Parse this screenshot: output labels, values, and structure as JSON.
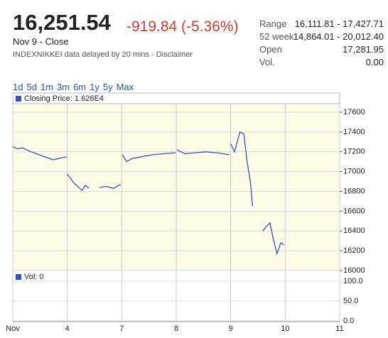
{
  "header": {
    "price": "16,251.54",
    "change": "-919.84 (-5.36%)",
    "date": "Nov 9 - Close",
    "note": "INDEXNIKKEI data delayed by 20 mins - Disclaimer"
  },
  "stats": [
    {
      "label": "Range",
      "value": "16,111.81 - 17,427.71"
    },
    {
      "label": "52 week",
      "value": "14,864.01 - 20,012.40"
    },
    {
      "label": "Open",
      "value": "17,281.95"
    },
    {
      "label": "Vol.",
      "value": "0.00"
    }
  ],
  "ranges": [
    "1d",
    "5d",
    "1m",
    "3m",
    "6m",
    "1y",
    "5y",
    "Max"
  ],
  "chart_data": {
    "type": "line",
    "legend": "Closing Price: 1.626E4",
    "color": "#3355bb",
    "grid": true,
    "x": [
      0,
      0.09,
      0.18,
      0.29,
      0.39,
      0.55,
      0.74,
      0.99,
      null,
      1.0,
      1.13,
      1.27,
      1.33,
      1.4,
      null,
      1.59,
      1.72,
      1.85,
      1.98,
      null,
      2.01,
      2.09,
      2.18,
      2.37,
      2.57,
      2.77,
      2.99,
      null,
      3.01,
      3.16,
      3.35,
      3.55,
      3.74,
      3.97,
      null,
      4.0,
      4.07,
      4.17,
      4.24,
      4.3,
      4.36,
      4.4,
      null,
      4.59,
      4.66,
      4.72,
      4.79,
      4.85,
      4.92,
      4.98
    ],
    "values": [
      17250,
      17230,
      17240,
      17210,
      17190,
      17155,
      17120,
      17150,
      null,
      16975,
      16880,
      16810,
      16860,
      16830,
      null,
      16840,
      16850,
      16830,
      16870,
      null,
      17170,
      17100,
      17130,
      17150,
      17170,
      17180,
      17190,
      null,
      17220,
      17180,
      17190,
      17200,
      17190,
      17170,
      null,
      17280,
      17200,
      17400,
      17380,
      17100,
      16900,
      16650,
      null,
      16400,
      16450,
      16480,
      16300,
      16170,
      16280,
      16260
    ],
    "xlim": [
      0,
      6
    ],
    "xticks": [
      {
        "value": 0,
        "label": "Nov"
      },
      {
        "value": 1,
        "label": "4"
      },
      {
        "value": 2,
        "label": "7"
      },
      {
        "value": 3,
        "label": "8"
      },
      {
        "value": 4,
        "label": "9"
      },
      {
        "value": 5,
        "label": "10"
      },
      {
        "value": 6,
        "label": "11"
      }
    ],
    "ylim": [
      16000,
      17600
    ],
    "yticks": [
      16000,
      16200,
      16400,
      16600,
      16800,
      17000,
      17200,
      17400,
      17600
    ],
    "volume_legend": "Vol: 0",
    "y2lim": [
      0,
      100
    ],
    "y2ticks": [
      {
        "value": 0,
        "label": "0.0"
      },
      {
        "value": 50,
        "label": "50.0"
      },
      {
        "value": 100,
        "label": "100.0"
      }
    ]
  }
}
